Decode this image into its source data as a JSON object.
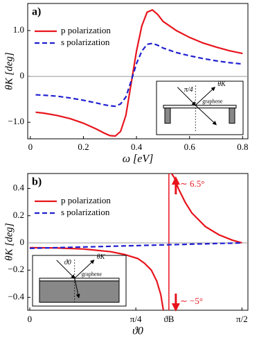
{
  "chart_data": [
    {
      "type": "line",
      "panel_label": "a)",
      "x_label": "ω [eV]",
      "y_label": "θK [deg]",
      "x": [
        0.02,
        0.05,
        0.1,
        0.15,
        0.2,
        0.25,
        0.28,
        0.3,
        0.32,
        0.34,
        0.36,
        0.38,
        0.4,
        0.42,
        0.44,
        0.46,
        0.48,
        0.5,
        0.55,
        0.6,
        0.65,
        0.7,
        0.75,
        0.8
      ],
      "series": [
        {
          "name": "p polarization",
          "color": "#e8141c",
          "dash": false,
          "values": [
            -0.78,
            -0.8,
            -0.85,
            -0.92,
            -1.02,
            -1.15,
            -1.24,
            -1.29,
            -1.3,
            -1.2,
            -0.85,
            -0.15,
            0.55,
            1.1,
            1.4,
            1.45,
            1.35,
            1.2,
            1.0,
            0.85,
            0.73,
            0.64,
            0.56,
            0.5
          ]
        },
        {
          "name": "s polarization",
          "color": "#1f1fd0",
          "dash": true,
          "values": [
            -0.4,
            -0.41,
            -0.43,
            -0.47,
            -0.52,
            -0.58,
            -0.62,
            -0.64,
            -0.65,
            -0.6,
            -0.45,
            -0.1,
            0.28,
            0.55,
            0.7,
            0.72,
            0.68,
            0.62,
            0.52,
            0.45,
            0.39,
            0.34,
            0.3,
            0.27
          ]
        }
      ],
      "xlim": [
        -0.01,
        0.82
      ],
      "ylim": [
        -1.36,
        1.59
      ],
      "xticks": [
        0,
        0.2,
        0.4,
        0.6,
        0.8
      ],
      "yticks": [
        {
          "value": 1,
          "label": "1.0"
        },
        0,
        {
          "value": -1,
          "label": "−1.0"
        }
      ],
      "reference_line": 0,
      "legend": "upper left",
      "inset": {
        "angle": "π/4",
        "reflected": "θK",
        "layer": "graphene"
      }
    },
    {
      "type": "line",
      "panel_label": "b)",
      "x_label": "ϑ0",
      "y_label": "θK [deg]",
      "x": [
        0,
        0.2,
        0.4,
        0.6,
        0.7,
        0.8,
        0.85,
        0.9,
        0.94,
        0.97,
        0.99,
        1.02,
        1.05,
        1.07,
        1.1,
        1.15,
        1.2,
        1.3,
        1.4,
        1.5,
        1.5708
      ],
      "series": [
        {
          "name": "p polarization",
          "color": "#e8141c",
          "dash": false,
          "values": [
            -0.035,
            -0.037,
            -0.045,
            -0.065,
            -0.085,
            -0.115,
            -0.15,
            -0.2,
            -0.28,
            -0.38,
            -0.5,
            null,
            0.51,
            0.48,
            0.4,
            0.3,
            0.22,
            0.12,
            0.06,
            0.02,
            0
          ]
        },
        {
          "name": "s polarization",
          "color": "#1f1fd0",
          "dash": true,
          "values": [
            -0.04,
            -0.035,
            -0.03,
            -0.025,
            -0.022,
            -0.02,
            -0.018,
            -0.017,
            -0.016,
            -0.015,
            -0.015,
            -0.014,
            -0.013,
            -0.013,
            -0.012,
            -0.011,
            -0.009,
            -0.007,
            -0.004,
            -0.002,
            0
          ]
        }
      ],
      "xlim": [
        -0.015,
        1.615
      ],
      "ylim": [
        -0.495,
        0.51
      ],
      "xticks": [
        0,
        {
          "value": 0.7854,
          "label": "π/4"
        },
        {
          "value": 1.03,
          "label": "ϑB"
        },
        {
          "value": 1.5708,
          "label": "π/2"
        }
      ],
      "yticks": [
        0.4,
        0.2,
        0,
        {
          "value": -0.2,
          "label": "−0.2"
        },
        {
          "value": -0.4,
          "label": "−0.4"
        }
      ],
      "reference_line": 0,
      "legend": "upper left",
      "pole_tick": 2,
      "annotations": [
        "∼ 6.5°",
        "∼ −5°"
      ],
      "inset": {
        "angle": "ϑ0",
        "reflected": "θK",
        "layer": "graphene"
      }
    }
  ]
}
